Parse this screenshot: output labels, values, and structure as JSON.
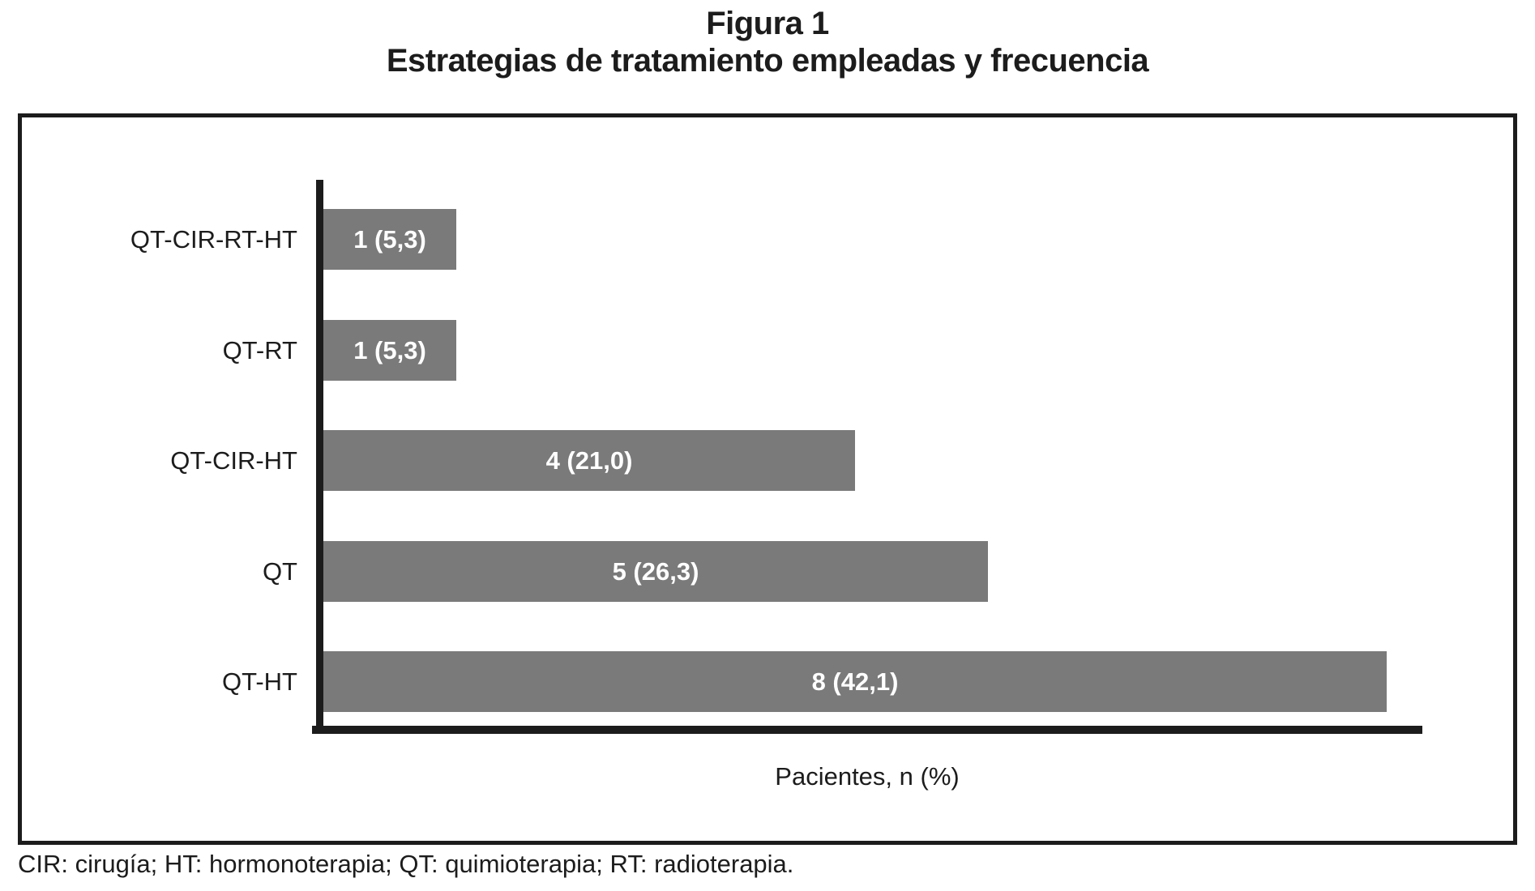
{
  "figure": {
    "title_line1": "Figura 1",
    "title_line2": "Estrategias de tratamiento empleadas y frecuencia",
    "footnote": "CIR: cirugía; HT: hormonoterapia; QT: quimioterapia; RT: radioterapia."
  },
  "chart_data": {
    "type": "bar",
    "orientation": "horizontal",
    "title": "Figura 1 — Estrategias de tratamiento empleadas y frecuencia",
    "categories": [
      "QT-CIR-RT-HT",
      "QT-RT",
      "QT-CIR-HT",
      "QT",
      "QT-HT"
    ],
    "values": [
      1,
      1,
      4,
      5,
      8
    ],
    "percentages": [
      5.3,
      5.3,
      21.0,
      26.3,
      42.1
    ],
    "bar_labels": [
      "1 (5,3)",
      "1 (5,3)",
      "4 (21,0)",
      "5 (26,3)",
      "8 (42,1)"
    ],
    "xlabel": "Pacientes, n (%)",
    "ylabel": "",
    "xlim": [
      0,
      8.35
    ],
    "grid": false,
    "legend": false,
    "bar_color": "#7a7a7a",
    "bar_label_color": "#ffffff",
    "axis_color": "#1c1c1c"
  }
}
